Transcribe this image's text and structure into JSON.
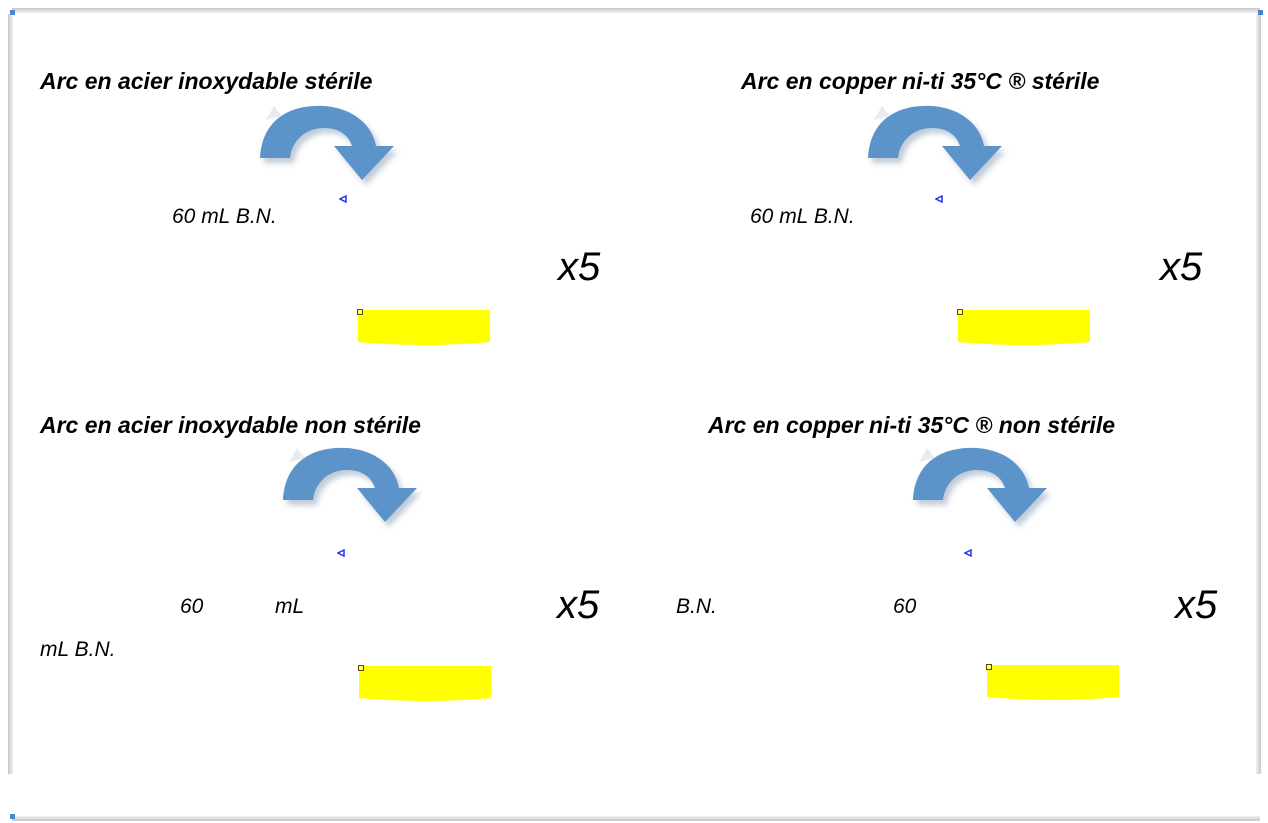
{
  "colors": {
    "arrow": "#5b93c9",
    "arrow_shadow": "#c9d4e0",
    "tray": "#ffff00",
    "handle": "#4444ff"
  },
  "quadrants": {
    "top_left": {
      "title": "Arc en acier inoxydable stérile",
      "volume": "60 mL B.N.",
      "multiplier": "x5"
    },
    "top_right": {
      "title": "Arc en copper ni-ti 35°C ® stérile",
      "volume": "60 mL B.N.",
      "multiplier": "x5"
    },
    "bottom_left": {
      "title": "Arc en acier inoxydable non stérile",
      "volume_part1": "60",
      "volume_part2": "mL",
      "volume_part3": "mL B.N.",
      "multiplier": "x5"
    },
    "bottom_right": {
      "title": "Arc en copper ni-ti 35°C ® non stérile",
      "volume_part1": "B.N.",
      "volume_part2": "60",
      "multiplier": "x5"
    }
  }
}
